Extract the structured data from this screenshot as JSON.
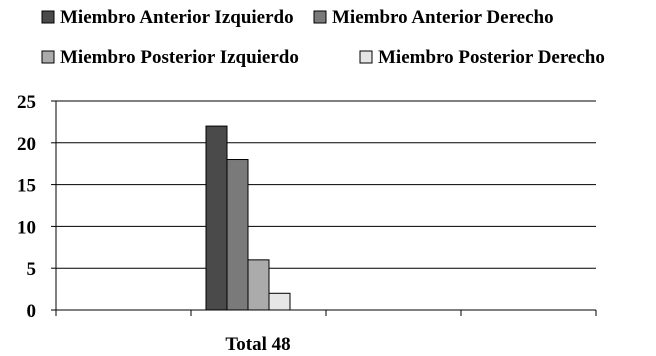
{
  "chart_data": {
    "type": "bar",
    "categories": [
      "Total 48"
    ],
    "series": [
      {
        "name": "Miembro Anterior Izquierdo",
        "values": [
          22
        ],
        "color": "#4a4a4a"
      },
      {
        "name": "Miembro Anterior Derecho",
        "values": [
          18
        ],
        "color": "#7a7a7a"
      },
      {
        "name": "Miembro Posterior Izquierdo",
        "values": [
          6
        ],
        "color": "#ababab"
      },
      {
        "name": "Miembro Posterior Derecho",
        "values": [
          2
        ],
        "color": "#e6e6e6"
      }
    ],
    "title": "",
    "xlabel": "",
    "ylabel": "",
    "ylim": [
      0,
      25
    ],
    "yticks": [
      0,
      5,
      10,
      15,
      20,
      25
    ],
    "grid": true,
    "legend_position": "top"
  }
}
